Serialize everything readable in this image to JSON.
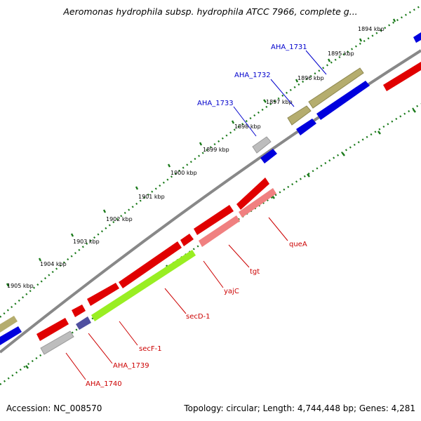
{
  "title": "Aeromonas hydrophila subsp. hydrophila ATCC 7966, complete g...",
  "footer": {
    "accession": "Accession: NC_008570",
    "topology": "Topology: circular; Length: 4,744,448 bp; Genes: 4,281"
  },
  "colors": {
    "backbone": "#888888",
    "forward_cds": "#e00000",
    "reverse_cds": "#0000dd",
    "rna_olive": "#b5ad6e",
    "pseudogene_gray": "#bdbdbd",
    "pink_cds": "#f08080",
    "green_cds": "#99ee22",
    "navy_cds": "#5050a0",
    "ruler_dots": "#1a7a1a",
    "forward_label": "#cc0000",
    "reverse_label": "#0000cc"
  },
  "ruler": {
    "unit": "kbp",
    "ticks": [
      "1894 kbp",
      "1895 kbp",
      "1896 kbp",
      "1897 kbp",
      "1898 kbp",
      "1899 kbp",
      "1900 kbp",
      "1901 kbp",
      "1902 kbp",
      "1903 kbp",
      "1904 kbp",
      "1905 kbp"
    ]
  },
  "genes": {
    "AHA_1731": "AHA_1731",
    "AHA_1732": "AHA_1732",
    "AHA_1733": "AHA_1733",
    "queA": "queA",
    "tgt": "tgt",
    "yajC": "yajC",
    "secD1": "secD-1",
    "secF1": "secF-1",
    "AHA_1739": "AHA_1739",
    "AHA_1740": "AHA_1740"
  }
}
